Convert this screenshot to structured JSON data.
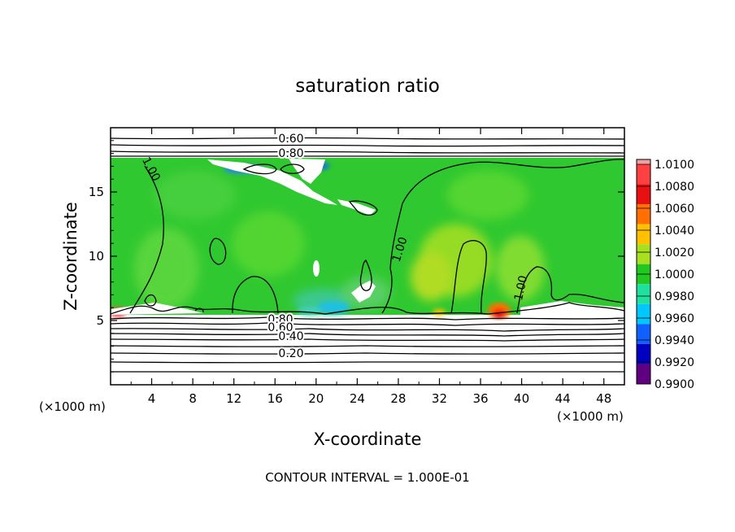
{
  "chart_data": {
    "type": "heatmap",
    "title": "saturation ratio",
    "xlabel": "X-coordinate",
    "ylabel": "Z-coordinate",
    "x_unit_note": "(×1000 m)",
    "y_unit_note": "(×1000 m)",
    "footer": "CONTOUR INTERVAL = 1.000E-01",
    "xlim": [
      0,
      50
    ],
    "ylim": [
      0,
      20
    ],
    "x_ticks": [
      4,
      8,
      12,
      16,
      20,
      24,
      28,
      32,
      36,
      40,
      44,
      48
    ],
    "y_ticks": [
      5,
      10,
      15
    ],
    "colorbar": {
      "levels": [
        "1.0100",
        "1.0080",
        "1.0060",
        "1.0040",
        "1.0020",
        "1.0000",
        "0.9980",
        "0.9960",
        "0.9940",
        "0.9920",
        "0.9900"
      ],
      "colors": [
        "#f0a0a0",
        "#ff4040",
        "#e81010",
        "#ff7000",
        "#ffc000",
        "#a8e020",
        "#20c820",
        "#20e0a0",
        "#00c8ff",
        "#1060ff",
        "#0000c0",
        "#600080"
      ]
    },
    "contour_labels": [
      {
        "text": "0.60",
        "x": 19.0,
        "z": 19.1
      },
      {
        "text": "0.80",
        "x": 19.0,
        "z": 17.9
      },
      {
        "text": "1.00",
        "x": 3.3,
        "z": 16.5
      },
      {
        "text": "1.00",
        "x": 28.5,
        "z": 11.0
      },
      {
        "text": "1.00",
        "x": 40.5,
        "z": 7.5
      },
      {
        "text": "0.80",
        "x": 16.5,
        "z": 5.1
      },
      {
        "text": "0.60",
        "x": 16.5,
        "z": 4.6
      },
      {
        "text": "0.40",
        "x": 16.5,
        "z": 3.8
      },
      {
        "text": "0.20",
        "x": 16.5,
        "z": 2.4
      }
    ],
    "moist_layer_z": [
      5.5,
      17.6
    ]
  }
}
